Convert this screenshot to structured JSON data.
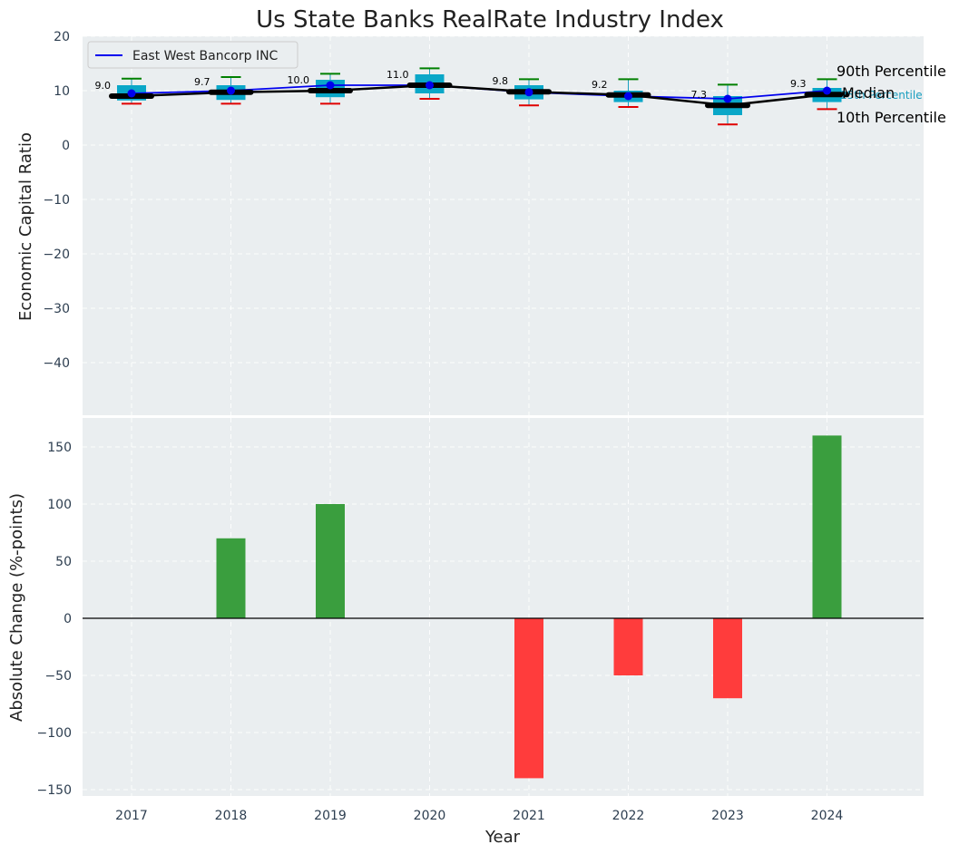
{
  "chart_data": [
    {
      "type": "box",
      "title": "Us State Banks RealRate Industry Index",
      "ylabel": "Economic Capital Ratio",
      "ylim": [
        -50,
        20
      ],
      "yticks": [
        20,
        10,
        0,
        -10,
        -20,
        -30,
        -40
      ],
      "categories": [
        "2017",
        "2018",
        "2019",
        "2020",
        "2021",
        "2022",
        "2023",
        "2024"
      ],
      "grid": true,
      "legend_position": "top-left",
      "percentiles": {
        "p10": [
          7.6,
          7.6,
          7.6,
          8.5,
          7.3,
          7.0,
          3.8,
          6.6
        ],
        "p25": [
          8.2,
          8.3,
          8.8,
          9.5,
          8.4,
          7.9,
          5.5,
          7.9
        ],
        "median": [
          9.0,
          9.7,
          10.0,
          11.0,
          9.8,
          9.2,
          7.3,
          9.3
        ],
        "p75": [
          11.0,
          11.0,
          12.0,
          13.0,
          11.0,
          10.0,
          9.0,
          10.5
        ],
        "p90": [
          12.2,
          12.5,
          13.1,
          14.1,
          12.1,
          12.1,
          11.1,
          12.1
        ]
      },
      "median_labels": [
        "9.0",
        "9.7",
        "10.0",
        "11.0",
        "9.8",
        "9.2",
        "7.3",
        "9.3"
      ],
      "series": [
        {
          "name": "East West Bancorp INC",
          "color": "#0000ee",
          "values": [
            9.5,
            10.0,
            11.0,
            11.0,
            9.7,
            9.0,
            8.5,
            10.0
          ]
        }
      ],
      "annotations": {
        "p90": "90th Percentile",
        "median": "Median",
        "p25": "25th Percentile",
        "p10": "10th Percentile"
      },
      "colors": {
        "box": "#0aa7c8",
        "median_line": "#000000",
        "p90_cap": "#008000",
        "p10_cap": "#e00000"
      }
    },
    {
      "type": "bar",
      "xlabel": "Year",
      "ylabel": "Absolute Change (%-points)",
      "ylim": [
        -155,
        178
      ],
      "yticks": [
        150,
        100,
        50,
        0,
        -50,
        -100,
        -150
      ],
      "categories": [
        "2017",
        "2018",
        "2019",
        "2020",
        "2021",
        "2022",
        "2023",
        "2024"
      ],
      "values": [
        0,
        70,
        100,
        0,
        -140,
        -50,
        -70,
        160
      ],
      "colors": {
        "positive": "#3a9e3e",
        "negative": "#ff3c3c"
      }
    }
  ]
}
